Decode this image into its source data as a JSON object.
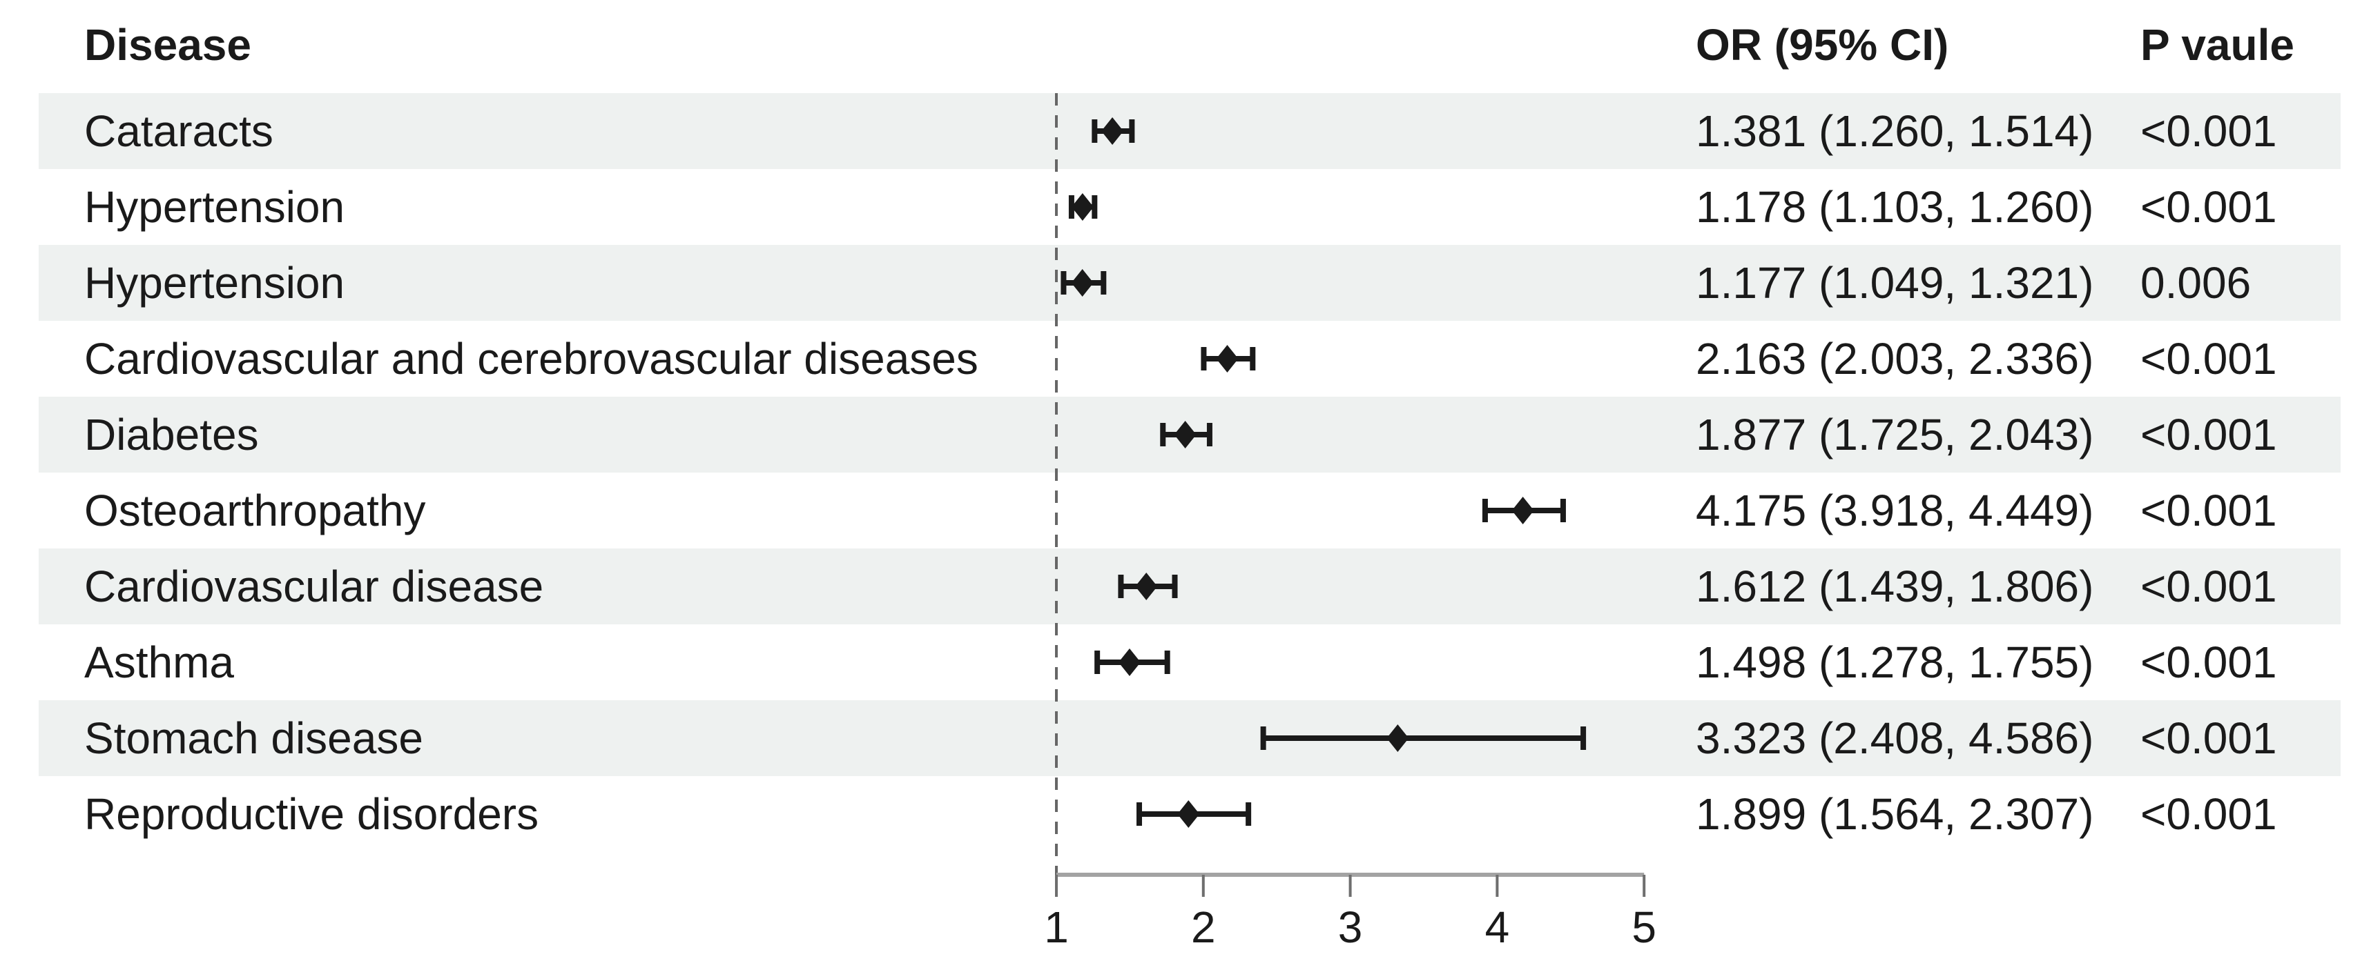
{
  "colors": {
    "text": "#1a1a1a",
    "stripe": "#eef1f0",
    "marker": "#1a1a1a",
    "axis_line": "#a3a3a3",
    "tick": "#6e6e6e",
    "reference_dash": "#666666",
    "background": "#ffffff"
  },
  "chart_data": {
    "type": "scatter",
    "variant": "forest-plot",
    "title": "",
    "xlabel": "",
    "ylabel": "",
    "grid": "off",
    "legend": null,
    "columns": {
      "disease": "Disease",
      "or_ci": "OR (95% CI)",
      "p": "P vaule"
    },
    "categories": [
      "Cataracts",
      "Hypertension",
      "Hypertension",
      "Cardiovascular and cerebrovascular diseases",
      "Diabetes",
      "Osteoarthropathy",
      "Cardiovascular disease",
      "Asthma",
      "Stomach disease",
      "Reproductive disorders"
    ],
    "series": [
      {
        "name": "OR",
        "values": [
          1.381,
          1.178,
          1.177,
          2.163,
          1.877,
          4.175,
          1.612,
          1.498,
          3.323,
          1.899
        ]
      },
      {
        "name": "CI_low",
        "values": [
          1.26,
          1.103,
          1.049,
          2.003,
          1.725,
          3.918,
          1.439,
          1.278,
          2.408,
          1.564
        ]
      },
      {
        "name": "CI_high",
        "values": [
          1.514,
          1.26,
          1.321,
          2.336,
          2.043,
          4.449,
          1.806,
          1.755,
          4.586,
          2.307
        ]
      }
    ],
    "or_ci_text": [
      "1.381 (1.260, 1.514)",
      "1.178 (1.103, 1.260)",
      "1.177 (1.049, 1.321)",
      "2.163 (2.003, 2.336)",
      "1.877 (1.725, 2.043)",
      "4.175 (3.918, 4.449)",
      "1.612 (1.439, 1.806)",
      "1.498 (1.278, 1.755)",
      "3.323 (2.408, 4.586)",
      "1.899 (1.564, 2.307)"
    ],
    "p_text": [
      "<0.001",
      "<0.001",
      "0.006",
      "<0.001",
      "<0.001",
      "<0.001",
      "<0.001",
      "<0.001",
      "<0.001",
      "<0.001"
    ],
    "x_axis": {
      "min": 1,
      "max": 5,
      "ticks": [
        1,
        2,
        3,
        4,
        5
      ],
      "reference_line": 1
    }
  }
}
